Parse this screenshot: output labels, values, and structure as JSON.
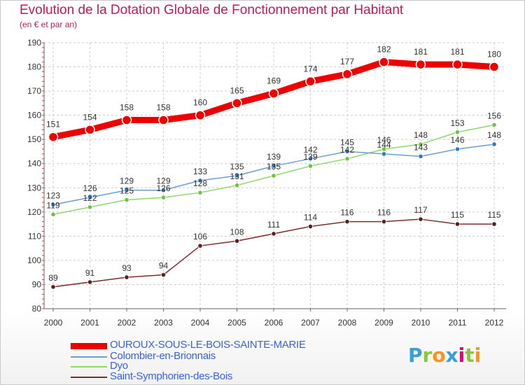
{
  "title": "Evolution de la Dotation Globale de Fonctionnement par Habitant",
  "subtitle": "(en € et par an)",
  "logo": {
    "letters": [
      "P",
      "r",
      "o",
      "x",
      "i",
      "t",
      "i"
    ],
    "colors": [
      "#3a9fd8",
      "#8cc63f",
      "#f7931e",
      "#3a9fd8",
      "#e6007e",
      "#8cc63f",
      "#f7931e"
    ]
  },
  "chart_data": {
    "type": "line",
    "title": "Evolution de la Dotation Globale de Fonctionnement par Habitant",
    "subtitle": "(en € et par an)",
    "xlabel": "",
    "ylabel": "",
    "x": [
      "2000",
      "2001",
      "2002",
      "2003",
      "2004",
      "2005",
      "2006",
      "2007",
      "2008",
      "2009",
      "2010",
      "2011",
      "2012"
    ],
    "ylim": [
      80,
      190
    ],
    "yticks": [
      80,
      90,
      100,
      110,
      120,
      130,
      140,
      150,
      160,
      170,
      180,
      190
    ],
    "grid": true,
    "legend_position": "bottom-left",
    "series": [
      {
        "name": "OUROUX-SOUS-LE-BOIS-SAINTE-MARIE",
        "color": "#ee0000",
        "dot": "#ee0000",
        "weight": "thick",
        "values": [
          151,
          154,
          158,
          158,
          160,
          165,
          169,
          174,
          177,
          182,
          181,
          181,
          180
        ]
      },
      {
        "name": "Colombier-en-Brionnais",
        "color": "#6b9fd0",
        "dot": "#2f7ac4",
        "weight": "thin",
        "values": [
          123,
          126,
          129,
          129,
          133,
          135,
          139,
          142,
          145,
          144,
          143,
          146,
          148
        ]
      },
      {
        "name": "Dyo",
        "color": "#8ed868",
        "dot": "#6cc63c",
        "weight": "thin",
        "values": [
          119,
          122,
          125,
          126,
          128,
          131,
          135,
          139,
          142,
          146,
          148,
          153,
          156
        ]
      },
      {
        "name": "Saint-Symphorien-des-Bois",
        "color": "#7a2f2f",
        "dot": "#5c1f1f",
        "weight": "thin",
        "values": [
          89,
          91,
          93,
          94,
          106,
          108,
          111,
          114,
          116,
          116,
          117,
          115,
          115
        ]
      }
    ]
  }
}
